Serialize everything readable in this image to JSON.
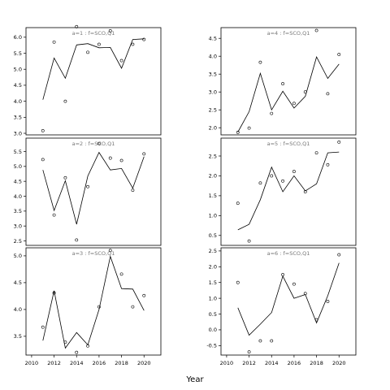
{
  "figure": {
    "xlabel": "Year"
  },
  "chart_data": [
    {
      "type": "line",
      "title": "a=1 : f=SCO,Q1",
      "xlim": [
        2009.5,
        2021.5
      ],
      "ylim": [
        2.95,
        6.3
      ],
      "xticks": [],
      "yticks": [
        3.0,
        3.5,
        4.0,
        4.5,
        5.0,
        5.5,
        6.0
      ],
      "line": {
        "x": [
          2011,
          2012,
          2013,
          2014,
          2015,
          2016,
          2017,
          2018,
          2019,
          2020
        ],
        "y": [
          4.05,
          5.35,
          4.72,
          5.76,
          5.8,
          5.67,
          5.68,
          5.03,
          5.93,
          5.95
        ]
      },
      "points": {
        "x": [
          2011,
          2012,
          2013,
          2014,
          2015,
          2016,
          2017,
          2018,
          2019,
          2020
        ],
        "y": [
          3.08,
          5.85,
          4.0,
          6.33,
          5.53,
          5.78,
          6.2,
          5.27,
          5.78,
          5.93
        ]
      }
    },
    {
      "type": "line",
      "title": "a=4 : f=SCO,Q1",
      "xlim": [
        2009.5,
        2021.5
      ],
      "ylim": [
        1.8,
        4.8
      ],
      "xticks": [],
      "yticks": [
        2.0,
        2.5,
        3.0,
        3.5,
        4.0,
        4.5
      ],
      "line": {
        "x": [
          2011,
          2012,
          2013,
          2014,
          2015,
          2016,
          2017,
          2018,
          2019,
          2020
        ],
        "y": [
          1.88,
          2.45,
          3.52,
          2.5,
          3.02,
          2.55,
          2.88,
          3.98,
          3.38,
          3.78
        ]
      },
      "points": {
        "x": [
          2011,
          2012,
          2013,
          2014,
          2015,
          2016,
          2017,
          2018,
          2019,
          2020
        ],
        "y": [
          1.87,
          1.99,
          3.83,
          2.4,
          3.23,
          2.68,
          3.0,
          4.72,
          2.95,
          4.05
        ]
      }
    },
    {
      "type": "line",
      "title": "a=2 : f=SCO,Q1",
      "xlim": [
        2009.5,
        2021.5
      ],
      "ylim": [
        2.35,
        5.95
      ],
      "xticks": [],
      "yticks": [
        2.5,
        3.0,
        3.5,
        4.0,
        4.5,
        5.0,
        5.5
      ],
      "line": {
        "x": [
          2011,
          2012,
          2013,
          2014,
          2015,
          2016,
          2017,
          2018,
          2019,
          2020
        ],
        "y": [
          4.88,
          3.52,
          4.52,
          3.06,
          4.68,
          5.47,
          4.88,
          4.93,
          4.27,
          5.33
        ]
      },
      "points": {
        "x": [
          2011,
          2012,
          2013,
          2014,
          2015,
          2016,
          2017,
          2018,
          2019,
          2020
        ],
        "y": [
          5.23,
          3.37,
          4.62,
          2.53,
          4.32,
          5.77,
          5.28,
          5.2,
          4.2,
          5.42
        ]
      }
    },
    {
      "type": "line",
      "title": "a=5 : f=SCO,Q1",
      "xlim": [
        2009.5,
        2021.5
      ],
      "ylim": [
        0.25,
        2.95
      ],
      "xticks": [],
      "yticks": [
        0.5,
        1.0,
        1.5,
        2.0,
        2.5
      ],
      "line": {
        "x": [
          2011,
          2012,
          2013,
          2014,
          2015,
          2016,
          2017,
          2018,
          2019,
          2020
        ],
        "y": [
          0.64,
          0.78,
          1.4,
          2.22,
          1.6,
          2.0,
          1.62,
          1.8,
          2.58,
          2.6
        ]
      },
      "points": {
        "x": [
          2011,
          2012,
          2013,
          2014,
          2015,
          2016,
          2017,
          2018,
          2019,
          2020
        ],
        "y": [
          1.31,
          0.36,
          1.82,
          2.0,
          1.87,
          2.11,
          1.6,
          2.58,
          2.28,
          2.85
        ]
      }
    },
    {
      "type": "line",
      "title": "a=3 : f=SCO,Q1",
      "xlim": [
        2009.5,
        2021.5
      ],
      "ylim": [
        3.15,
        5.15
      ],
      "xticks": [
        2010,
        2012,
        2014,
        2016,
        2018,
        2020
      ],
      "yticks": [
        3.5,
        4.0,
        4.5,
        5.0
      ],
      "line": {
        "x": [
          2011,
          2012,
          2013,
          2014,
          2015,
          2016,
          2017,
          2018,
          2019,
          2020
        ],
        "y": [
          3.42,
          4.35,
          3.28,
          3.57,
          3.34,
          4.0,
          4.99,
          4.39,
          4.38,
          3.98
        ]
      },
      "points": {
        "x": [
          2011,
          2012,
          2013,
          2014,
          2015,
          2016,
          2017,
          2018,
          2019,
          2020
        ],
        "y": [
          3.67,
          4.31,
          3.39,
          3.2,
          3.32,
          4.05,
          5.1,
          4.66,
          4.05,
          4.26
        ]
      }
    },
    {
      "type": "line",
      "title": "a=6 : f=SCO,Q1",
      "xlim": [
        2009.5,
        2021.5
      ],
      "ylim": [
        -0.8,
        2.6
      ],
      "xticks": [
        2010,
        2012,
        2014,
        2016,
        2018,
        2020
      ],
      "yticks": [
        -0.5,
        0.0,
        0.5,
        1.0,
        1.5,
        2.0,
        2.5
      ],
      "line": {
        "x": [
          2011,
          2012,
          2013,
          2014,
          2015,
          2016,
          2017,
          2018,
          2019,
          2020
        ],
        "y": [
          0.7,
          -0.17,
          0.18,
          0.55,
          1.7,
          1.0,
          1.12,
          0.22,
          1.08,
          2.12
        ]
      },
      "points": {
        "x": [
          2011,
          2012,
          2013,
          2014,
          2015,
          2016,
          2017,
          2018,
          2019,
          2020
        ],
        "y": [
          1.5,
          -0.7,
          -0.35,
          -0.35,
          1.75,
          1.45,
          1.15,
          0.32,
          0.9,
          2.38
        ]
      }
    }
  ]
}
